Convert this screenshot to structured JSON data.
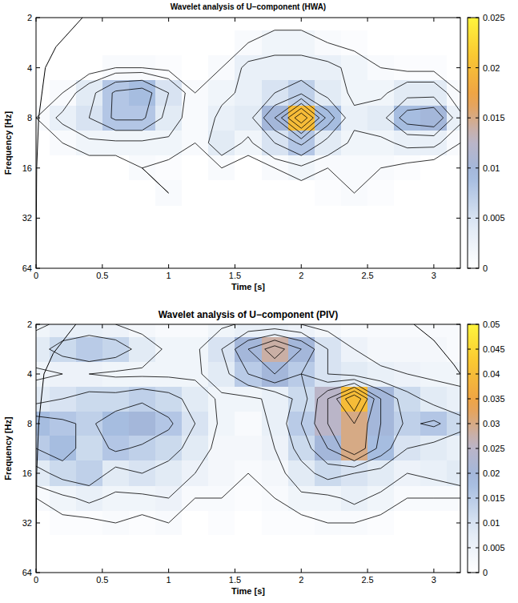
{
  "chart_data": [
    {
      "type": "heatmap",
      "title": "Wavelet analysis of U−component (HWA)",
      "x_label": "Time [s]",
      "y_label": "Frequency [Hz]",
      "log": "y",
      "xlim": [
        0,
        3.2
      ],
      "xticks": [
        0,
        0.5,
        1,
        1.5,
        2,
        2.5,
        3
      ],
      "ylim": [
        64,
        2
      ],
      "yticks": [
        2,
        4,
        8,
        16,
        32,
        64
      ],
      "x": [
        0,
        0.2,
        0.4,
        0.6,
        0.8,
        1.0,
        1.2,
        1.4,
        1.6,
        1.8,
        2.0,
        2.2,
        2.4,
        2.6,
        2.8,
        3.0,
        3.2
      ],
      "y": [
        2,
        2.83,
        4,
        5.66,
        8,
        11.31,
        16,
        22.63,
        32,
        45.25,
        64
      ],
      "cells": [
        [
          0,
          0,
          0,
          0,
          0,
          0,
          0,
          0,
          0,
          0,
          0,
          0,
          0,
          0,
          0,
          0,
          0
        ],
        [
          0,
          0,
          0,
          0,
          0,
          0,
          0,
          0,
          0.001,
          0.002,
          0.002,
          0.001,
          0.0005,
          0,
          0,
          0,
          0
        ],
        [
          0,
          0,
          0,
          0.001,
          0.001,
          0.0005,
          0,
          0.001,
          0.003,
          0.003,
          0.003,
          0.003,
          0.002,
          0.001,
          0.0005,
          0.0005,
          0
        ],
        [
          0,
          0.001,
          0.004,
          0.008,
          0.009,
          0.005,
          0.001,
          0.002,
          0.003,
          0.005,
          0.007,
          0.004,
          0.002,
          0.002,
          0.004,
          0.004,
          0.001
        ],
        [
          0.001,
          0.003,
          0.005,
          0.008,
          0.008,
          0.004,
          0.001,
          0.003,
          0.004,
          0.01,
          0.02,
          0.009,
          0.003,
          0.004,
          0.009,
          0.01,
          0.003
        ],
        [
          0,
          0.001,
          0.002,
          0.002,
          0.002,
          0.002,
          0.001,
          0.004,
          0.002,
          0.005,
          0.008,
          0.004,
          0.002,
          0.002,
          0.003,
          0.003,
          0.001
        ],
        [
          0,
          0,
          0,
          0,
          0.001,
          0.0005,
          0,
          0.001,
          0,
          0.001,
          0.002,
          0.001,
          0.001,
          0.001,
          0.0005,
          0,
          0
        ],
        [
          0,
          0,
          0,
          0,
          0,
          0.001,
          0,
          0,
          0,
          0,
          0,
          0.0005,
          0.001,
          0.0005,
          0,
          0,
          0
        ],
        [
          0,
          0,
          0,
          0,
          0,
          0,
          0,
          0,
          0,
          0,
          0,
          0,
          0,
          0,
          0,
          0,
          0
        ],
        [
          0,
          0,
          0,
          0,
          0,
          0,
          0,
          0,
          0,
          0,
          0,
          0,
          0,
          0,
          0,
          0,
          0
        ],
        [
          0,
          0,
          0,
          0,
          0,
          0,
          0,
          0,
          0,
          0,
          0,
          0,
          0,
          0,
          0,
          0,
          0
        ]
      ],
      "colorbar": {
        "range": [
          0,
          0.025
        ],
        "ticks": [
          0,
          0.005,
          0.01,
          0.015,
          0.02,
          0.025
        ]
      },
      "coi": [
        {
          "x": [
            0,
            0.005,
            0.02,
            0.07,
            0.15,
            0.35
          ],
          "y": [
            64,
            16,
            8,
            4,
            3,
            2
          ]
        }
      ]
    },
    {
      "type": "heatmap",
      "title": "Wavelet analysis of U−component  (PIV)",
      "x_label": "Time [s]",
      "y_label": "Frequency [Hz]",
      "log": "y",
      "xlim": [
        0,
        3.2
      ],
      "xticks": [
        0,
        0.5,
        1,
        1.5,
        2,
        2.5,
        3
      ],
      "ylim": [
        64,
        2
      ],
      "yticks": [
        2,
        4,
        8,
        16,
        32,
        64
      ],
      "x": [
        0,
        0.2,
        0.4,
        0.6,
        0.8,
        1.0,
        1.2,
        1.4,
        1.6,
        1.8,
        2.0,
        2.2,
        2.4,
        2.6,
        2.8,
        3.0,
        3.2
      ],
      "y": [
        2,
        2.83,
        4,
        5.66,
        8,
        11.31,
        16,
        22.63,
        32,
        45.25,
        64
      ],
      "cells": [
        [
          0.004,
          0.006,
          0.006,
          0.005,
          0.003,
          0.002,
          0.002,
          0.004,
          0.006,
          0.006,
          0.005,
          0.003,
          0.002,
          0.002,
          0.002,
          0.002,
          0.002
        ],
        [
          0.008,
          0.012,
          0.015,
          0.013,
          0.008,
          0.004,
          0.004,
          0.01,
          0.02,
          0.028,
          0.02,
          0.01,
          0.005,
          0.003,
          0.003,
          0.003,
          0.002
        ],
        [
          0.004,
          0.005,
          0.005,
          0.004,
          0.004,
          0.004,
          0.004,
          0.008,
          0.015,
          0.02,
          0.015,
          0.01,
          0.008,
          0.006,
          0.005,
          0.004,
          0.004
        ],
        [
          0.008,
          0.01,
          0.012,
          0.012,
          0.014,
          0.012,
          0.008,
          0.004,
          0.004,
          0.006,
          0.012,
          0.025,
          0.04,
          0.02,
          0.012,
          0.008,
          0.006
        ],
        [
          0.018,
          0.016,
          0.014,
          0.018,
          0.02,
          0.016,
          0.01,
          0.004,
          0.002,
          0.006,
          0.015,
          0.025,
          0.03,
          0.02,
          0.014,
          0.016,
          0.012
        ],
        [
          0.015,
          0.018,
          0.012,
          0.016,
          0.014,
          0.012,
          0.008,
          0.003,
          0.003,
          0.005,
          0.012,
          0.02,
          0.03,
          0.018,
          0.01,
          0.008,
          0.006
        ],
        [
          0.008,
          0.012,
          0.014,
          0.008,
          0.01,
          0.008,
          0.005,
          0.003,
          0.002,
          0.003,
          0.008,
          0.012,
          0.01,
          0.008,
          0.005,
          0.006,
          0.008
        ],
        [
          0.002,
          0.004,
          0.006,
          0.004,
          0.004,
          0.005,
          0.002,
          0.002,
          0.001,
          0.002,
          0.004,
          0.004,
          0.006,
          0.004,
          0.002,
          0.002,
          0.002
        ],
        [
          0,
          0.001,
          0.001,
          0.002,
          0.001,
          0.002,
          0,
          0.001,
          0,
          0.001,
          0.001,
          0.002,
          0.002,
          0.001,
          0,
          0,
          0
        ],
        [
          0,
          0,
          0,
          0,
          0,
          0,
          0,
          0,
          0,
          0,
          0,
          0,
          0,
          0,
          0,
          0,
          0
        ],
        [
          0,
          0,
          0,
          0,
          0,
          0,
          0,
          0,
          0,
          0,
          0,
          0,
          0,
          0,
          0,
          0,
          0
        ]
      ],
      "colorbar": {
        "range": [
          0,
          0.05
        ],
        "ticks": [
          0,
          0.005,
          0.01,
          0.015,
          0.02,
          0.025,
          0.03,
          0.035,
          0.04,
          0.045,
          0.05
        ]
      },
      "coi": [
        {
          "x": [
            0,
            0.005,
            0.02,
            0.06,
            0.13,
            0.3
          ],
          "y": [
            64,
            16,
            8,
            4,
            3,
            2
          ]
        },
        {
          "x": [
            2.85,
            3.0,
            3.15,
            3.2
          ],
          "y": [
            2,
            2.5,
            3.5,
            4
          ]
        }
      ]
    }
  ]
}
